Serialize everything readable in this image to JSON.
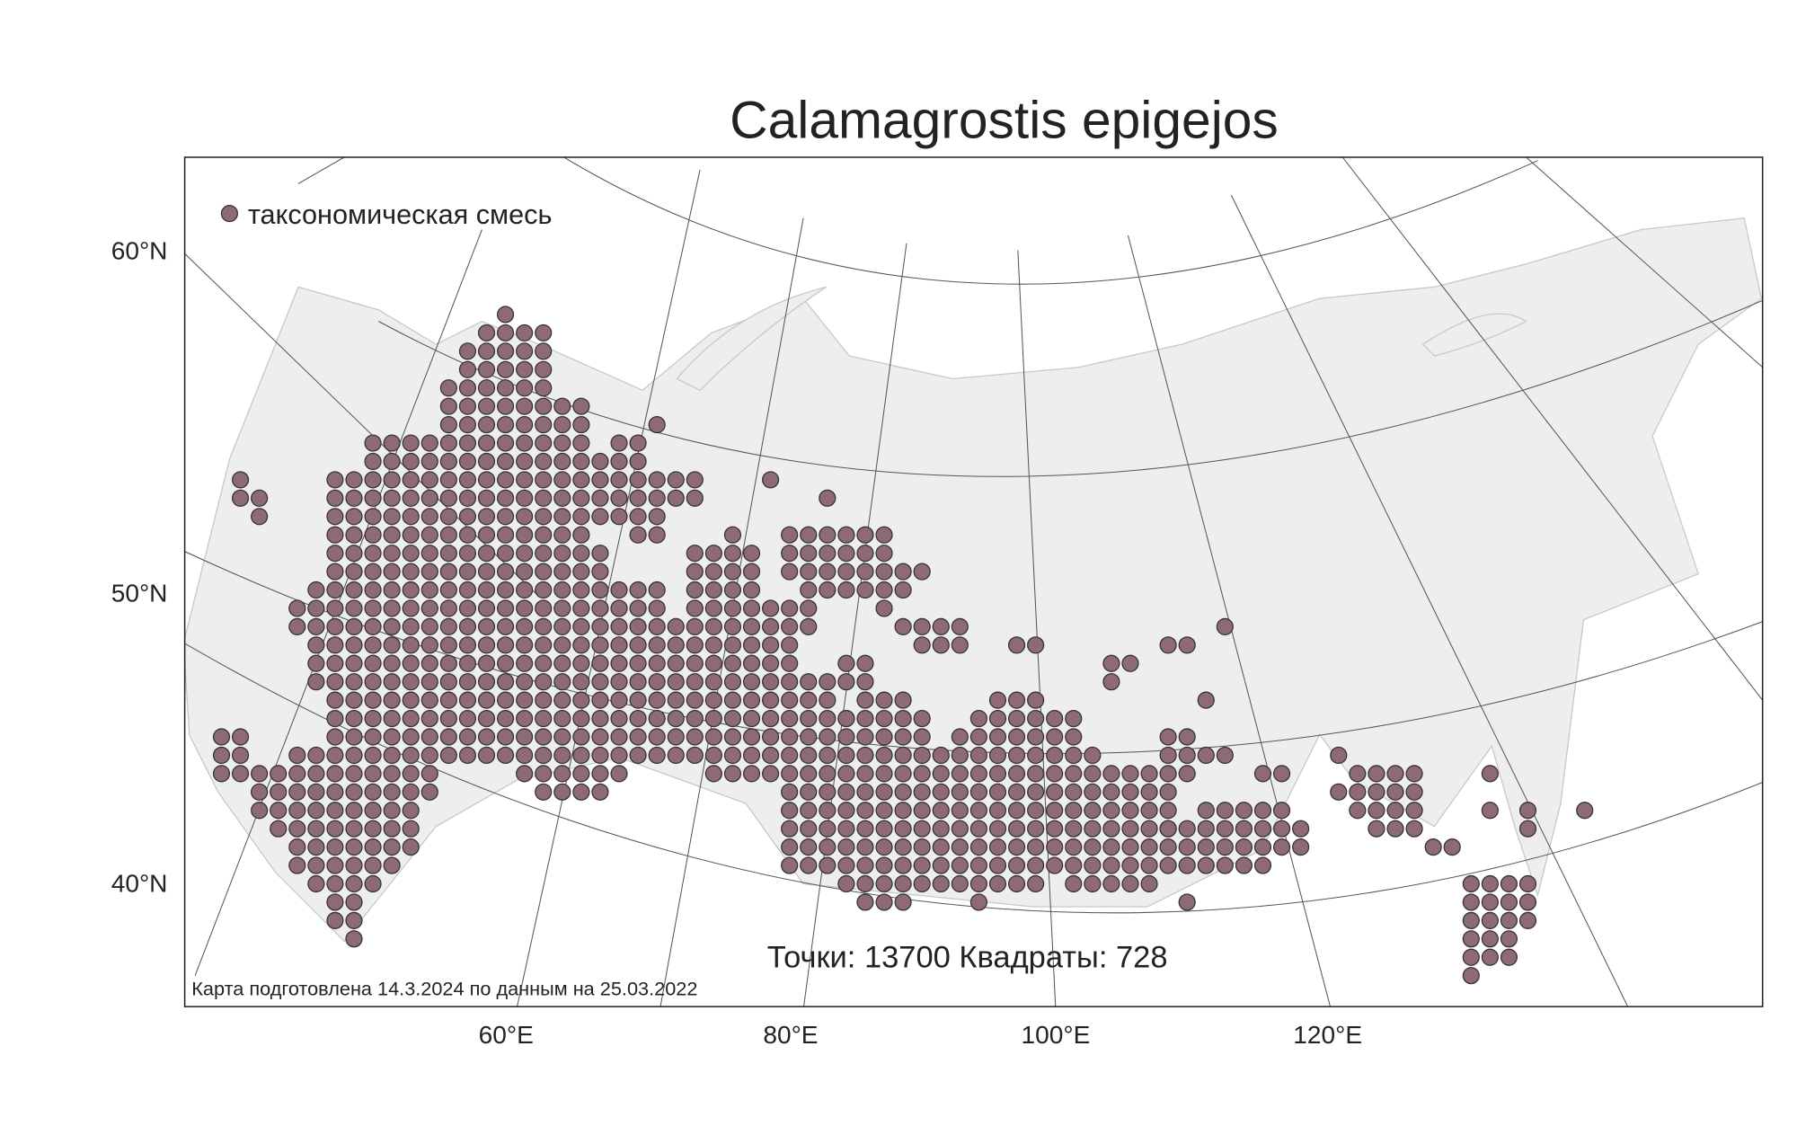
{
  "map": {
    "title": "Calamagrostis epigejos",
    "legend": {
      "label": "таксономическая смесь",
      "color": "#8e6a78"
    },
    "lat_labels": [
      "60°N",
      "50°N",
      "40°N"
    ],
    "lon_labels": [
      "60°E",
      "80°E",
      "100°E",
      "120°E"
    ],
    "stats": {
      "points_label": "Точки:",
      "points": 13700,
      "squares_label": "Квадраты:",
      "squares": 728
    },
    "footnote": "Карта подготовлена 14.3.2024 по данным на 25.03.2022"
  }
}
